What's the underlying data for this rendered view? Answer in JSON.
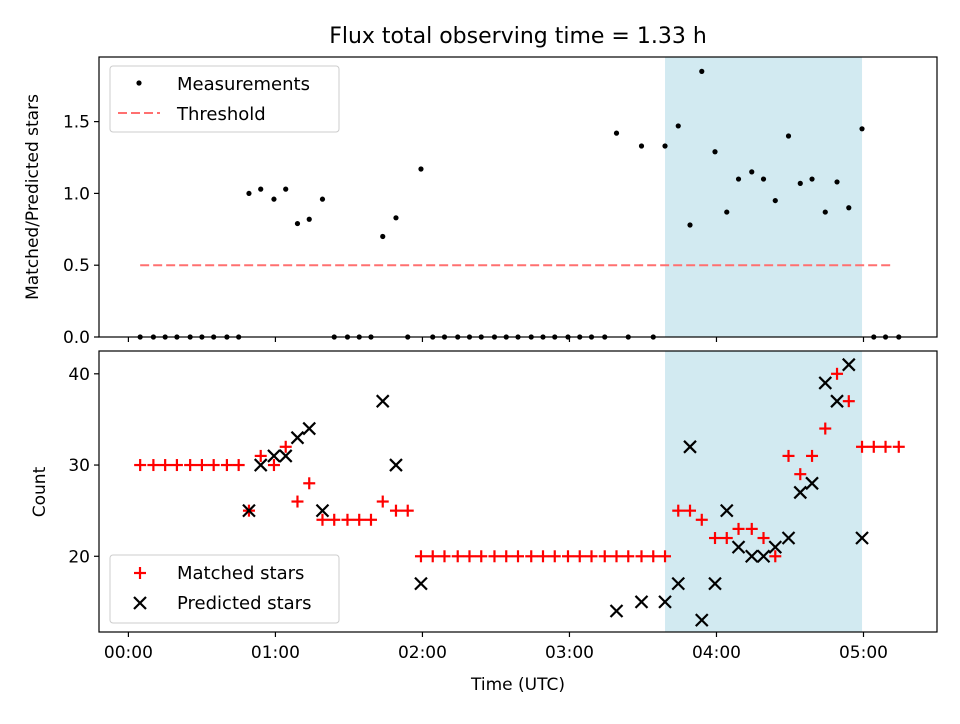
{
  "title": "Flux total observing time = 1.33 h",
  "shaded_region": {
    "x_start": 3.65,
    "x_end": 4.99,
    "color": "#add8e6"
  },
  "colors": {
    "measurements": "#000000",
    "threshold": "#ff7070",
    "matched": "#ff0000",
    "predicted": "#000000"
  },
  "xaxis": {
    "label": "Time (UTC)",
    "xlim": [
      -0.2,
      5.5
    ],
    "ticks": [
      0,
      1,
      2,
      3,
      4,
      5
    ],
    "tick_labels": [
      "00:00",
      "01:00",
      "02:00",
      "03:00",
      "04:00",
      "05:00"
    ]
  },
  "chart_data": [
    {
      "type": "scatter",
      "ylabel": "Matched/Predicted stars",
      "ylim": [
        0,
        1.95
      ],
      "yticks": [
        0.0,
        0.5,
        1.0,
        1.5
      ],
      "ytick_labels": [
        "0.0",
        "0.5",
        "1.0",
        "1.5"
      ],
      "legend": {
        "placement": "top-left",
        "entries": [
          "Measurements",
          "Threshold"
        ]
      },
      "threshold": {
        "name": "Threshold",
        "value": 0.5,
        "x_range": [
          0.08,
          5.2
        ]
      },
      "series": [
        {
          "name": "Measurements",
          "x": [
            0.08,
            0.17,
            0.25,
            0.33,
            0.42,
            0.5,
            0.58,
            0.67,
            0.75,
            0.82,
            0.9,
            0.99,
            1.07,
            1.15,
            1.23,
            1.32,
            1.4,
            1.49,
            1.57,
            1.65,
            1.73,
            1.82,
            1.9,
            1.99,
            2.07,
            2.15,
            2.24,
            2.32,
            2.4,
            2.49,
            2.57,
            2.65,
            2.74,
            2.82,
            2.9,
            2.99,
            3.07,
            3.15,
            3.24,
            3.32,
            3.4,
            3.49,
            3.57,
            3.65,
            3.74,
            3.82,
            3.9,
            3.99,
            4.07,
            4.15,
            4.24,
            4.32,
            4.4,
            4.49,
            4.57,
            4.65,
            4.74,
            4.82,
            4.9,
            4.99,
            5.07,
            5.15,
            5.24
          ],
          "y": [
            0,
            0,
            0,
            0,
            0,
            0,
            0,
            0,
            0,
            1.0,
            1.03,
            0.96,
            1.03,
            0.79,
            0.82,
            0.96,
            0,
            0,
            0,
            0,
            0.7,
            0.83,
            0,
            1.17,
            0,
            0,
            0,
            0,
            0,
            0,
            0,
            0,
            0,
            0,
            0,
            0,
            0,
            0,
            0,
            1.42,
            0,
            1.33,
            0,
            1.33,
            1.47,
            0.78,
            1.85,
            1.29,
            0.87,
            1.1,
            1.15,
            1.1,
            0.95,
            1.4,
            1.07,
            1.1,
            0.87,
            1.08,
            0.9,
            1.45,
            0,
            0,
            0
          ]
        }
      ]
    },
    {
      "type": "scatter",
      "ylabel": "Count",
      "ylim": [
        11.7,
        42.5
      ],
      "yticks": [
        20,
        30,
        40
      ],
      "ytick_labels": [
        "20",
        "30",
        "40"
      ],
      "legend": {
        "placement": "bottom-left",
        "entries": [
          "Matched stars",
          "Predicted stars"
        ]
      },
      "series": [
        {
          "name": "Matched stars",
          "marker": "+",
          "x": [
            0.08,
            0.17,
            0.25,
            0.33,
            0.42,
            0.5,
            0.58,
            0.67,
            0.75,
            0.82,
            0.9,
            0.99,
            1.07,
            1.15,
            1.23,
            1.32,
            1.4,
            1.49,
            1.57,
            1.65,
            1.73,
            1.82,
            1.9,
            1.99,
            2.07,
            2.15,
            2.24,
            2.32,
            2.4,
            2.49,
            2.57,
            2.65,
            2.74,
            2.82,
            2.9,
            2.99,
            3.07,
            3.15,
            3.24,
            3.32,
            3.4,
            3.49,
            3.57,
            3.65,
            3.74,
            3.82,
            3.9,
            3.99,
            4.07,
            4.15,
            4.24,
            4.32,
            4.4,
            4.49,
            4.57,
            4.65,
            4.74,
            4.82,
            4.9,
            4.99,
            5.07,
            5.15,
            5.24
          ],
          "y": [
            30,
            30,
            30,
            30,
            30,
            30,
            30,
            30,
            30,
            25,
            31,
            30,
            32,
            26,
            28,
            24,
            24,
            24,
            24,
            24,
            26,
            25,
            25,
            20,
            20,
            20,
            20,
            20,
            20,
            20,
            20,
            20,
            20,
            20,
            20,
            20,
            20,
            20,
            20,
            20,
            20,
            20,
            20,
            20,
            25,
            25,
            24,
            22,
            22,
            23,
            23,
            22,
            20,
            31,
            29,
            31,
            34,
            40,
            37,
            32,
            32,
            32,
            32
          ]
        },
        {
          "name": "Predicted stars",
          "marker": "x",
          "x": [
            0.82,
            0.9,
            0.99,
            1.07,
            1.15,
            1.23,
            1.32,
            1.73,
            1.82,
            1.99,
            3.32,
            3.49,
            3.65,
            3.74,
            3.82,
            3.9,
            3.99,
            4.07,
            4.15,
            4.24,
            4.32,
            4.4,
            4.49,
            4.57,
            4.65,
            4.74,
            4.82,
            4.9,
            4.99
          ],
          "y": [
            25,
            30,
            31,
            31,
            33,
            34,
            25,
            37,
            30,
            17,
            14,
            15,
            15,
            17,
            32,
            13,
            17,
            25,
            21,
            20,
            20,
            21,
            22,
            27,
            28,
            39,
            37,
            41,
            22
          ]
        }
      ]
    }
  ]
}
